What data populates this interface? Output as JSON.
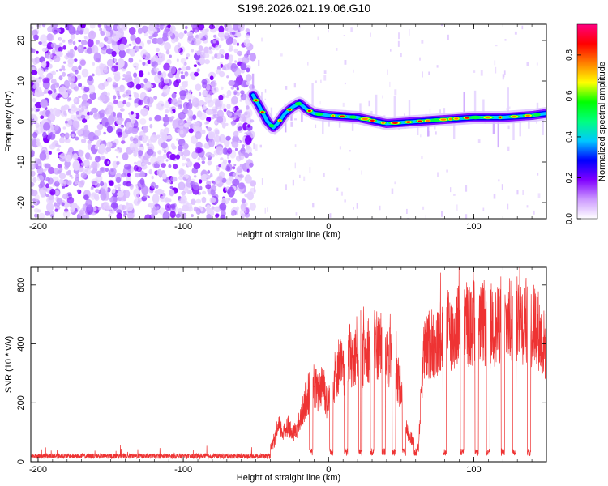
{
  "title": "S196.2026.021.19.06.G10",
  "chart_data": [
    {
      "type": "heatmap",
      "xlabel": "Height of straight line (km)",
      "ylabel": "Frequency (Hz)",
      "xlim": [
        -205,
        150
      ],
      "ylim": [
        -24,
        24
      ],
      "xticks": [
        -200,
        -100,
        0,
        100
      ],
      "yticks": [
        -20,
        -10,
        0,
        10,
        20
      ],
      "colorbar": {
        "label": "Normalized spectral amplitude",
        "ticks": [
          "0.0",
          "0.2",
          "0.4",
          "0.6",
          "0.8"
        ],
        "tick_values": [
          0.0,
          0.2,
          0.4,
          0.6,
          0.8
        ],
        "range": [
          0,
          0.95
        ],
        "colors": [
          "#ffffff",
          "#cc99ff",
          "#8000ff",
          "#0000ff",
          "#00c8ff",
          "#00ff80",
          "#00ff00",
          "#ffff00",
          "#ff8000",
          "#ff0000",
          "#ff0080"
        ]
      },
      "signal_track": {
        "start_x": -52,
        "points": [
          {
            "x": -52,
            "f": 6.5
          },
          {
            "x": -48,
            "f": 4.0
          },
          {
            "x": -45,
            "f": 2.0
          },
          {
            "x": -42,
            "f": 0.0
          },
          {
            "x": -38,
            "f": -1.5
          },
          {
            "x": -35,
            "f": -0.5
          },
          {
            "x": -30,
            "f": 2.0
          },
          {
            "x": -25,
            "f": 3.5
          },
          {
            "x": -20,
            "f": 4.5
          },
          {
            "x": -15,
            "f": 3.0
          },
          {
            "x": -10,
            "f": 2.0
          },
          {
            "x": 0,
            "f": 1.5
          },
          {
            "x": 20,
            "f": 1.0
          },
          {
            "x": 40,
            "f": -0.5
          },
          {
            "x": 60,
            "f": 0.0
          },
          {
            "x": 80,
            "f": 0.5
          },
          {
            "x": 100,
            "f": 1.0
          },
          {
            "x": 120,
            "f": 1.0
          },
          {
            "x": 140,
            "f": 1.5
          },
          {
            "x": 150,
            "f": 2.0
          }
        ]
      }
    },
    {
      "type": "line",
      "xlabel": "Height of straight line (km)",
      "ylabel": "SNR (10 * v/v)",
      "xlim": [
        -205,
        150
      ],
      "ylim": [
        0,
        660
      ],
      "xticks": [
        -200,
        -100,
        0,
        100
      ],
      "yticks": [
        0,
        200,
        400,
        600
      ],
      "color": "#ee3333",
      "series": [
        {
          "name": "SNR",
          "x": [
            -205,
            -190,
            -175,
            -160,
            -145,
            -130,
            -115,
            -100,
            -85,
            -70,
            -55,
            -45,
            -40,
            -37,
            -34,
            -31,
            -28,
            -25,
            -22,
            -19,
            -16,
            -13,
            -10,
            -7,
            -4,
            -1,
            2,
            5,
            8,
            11,
            14,
            17,
            20,
            23,
            26,
            29,
            32,
            35,
            38,
            41,
            44,
            47,
            50,
            53,
            56,
            59,
            62,
            65,
            68,
            71,
            74,
            77,
            80,
            83,
            86,
            89,
            92,
            95,
            98,
            101,
            104,
            107,
            110,
            113,
            116,
            119,
            122,
            125,
            128,
            131,
            134,
            137,
            140,
            143,
            146,
            150
          ],
          "y": [
            15,
            22,
            18,
            20,
            17,
            22,
            19,
            21,
            18,
            22,
            20,
            25,
            55,
            90,
            150,
            120,
            160,
            110,
            140,
            180,
            260,
            300,
            330,
            280,
            360,
            240,
            300,
            380,
            420,
            350,
            470,
            400,
            490,
            430,
            500,
            470,
            520,
            480,
            500,
            450,
            420,
            380,
            300,
            180,
            100,
            90,
            60,
            450,
            480,
            520,
            470,
            560,
            510,
            580,
            520,
            590,
            540,
            600,
            560,
            610,
            570,
            590,
            540,
            600,
            560,
            620,
            580,
            600,
            560,
            630,
            590,
            610,
            560,
            600,
            520,
            480
          ],
          "dips_x": [
            -12,
            2,
            12,
            22,
            30,
            38,
            45,
            52,
            60,
            80,
            92,
            102,
            110,
            120,
            128,
            138
          ]
        }
      ]
    }
  ]
}
